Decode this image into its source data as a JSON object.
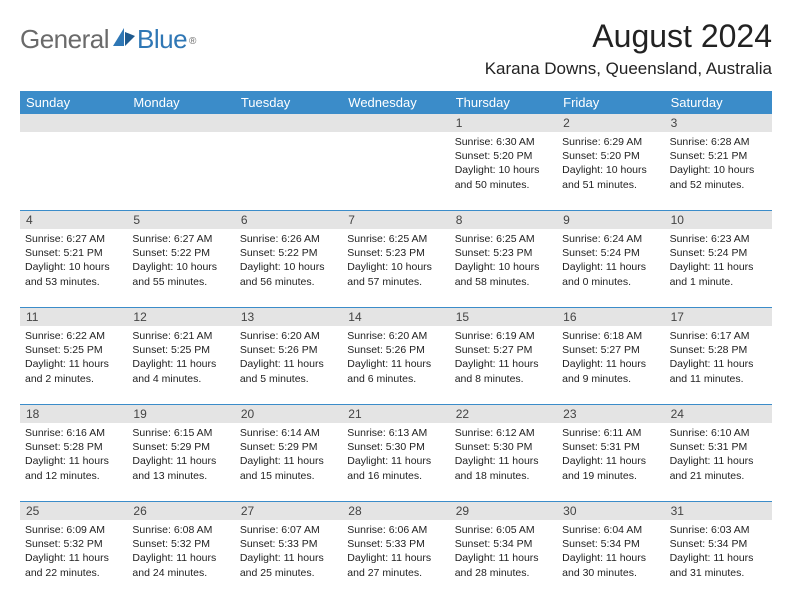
{
  "brand": {
    "part1": "General",
    "part2": "Blue",
    "reg": "®"
  },
  "title": "August 2024",
  "location": "Karana Downs, Queensland, Australia",
  "colors": {
    "header_bg": "#3b8cc9",
    "header_text": "#ffffff",
    "date_strip_bg": "#e4e4e4",
    "week_divider": "#3b8cc9",
    "logo_gray": "#6a6a6a",
    "logo_blue": "#2f77b5"
  },
  "day_names": [
    "Sunday",
    "Monday",
    "Tuesday",
    "Wednesday",
    "Thursday",
    "Friday",
    "Saturday"
  ],
  "weeks": [
    {
      "dates": [
        "",
        "",
        "",
        "",
        "1",
        "2",
        "3"
      ],
      "cells": [
        {
          "sunrise": "",
          "sunset": "",
          "daylight": ""
        },
        {
          "sunrise": "",
          "sunset": "",
          "daylight": ""
        },
        {
          "sunrise": "",
          "sunset": "",
          "daylight": ""
        },
        {
          "sunrise": "",
          "sunset": "",
          "daylight": ""
        },
        {
          "sunrise": "Sunrise: 6:30 AM",
          "sunset": "Sunset: 5:20 PM",
          "daylight": "Daylight: 10 hours and 50 minutes."
        },
        {
          "sunrise": "Sunrise: 6:29 AM",
          "sunset": "Sunset: 5:20 PM",
          "daylight": "Daylight: 10 hours and 51 minutes."
        },
        {
          "sunrise": "Sunrise: 6:28 AM",
          "sunset": "Sunset: 5:21 PM",
          "daylight": "Daylight: 10 hours and 52 minutes."
        }
      ]
    },
    {
      "dates": [
        "4",
        "5",
        "6",
        "7",
        "8",
        "9",
        "10"
      ],
      "cells": [
        {
          "sunrise": "Sunrise: 6:27 AM",
          "sunset": "Sunset: 5:21 PM",
          "daylight": "Daylight: 10 hours and 53 minutes."
        },
        {
          "sunrise": "Sunrise: 6:27 AM",
          "sunset": "Sunset: 5:22 PM",
          "daylight": "Daylight: 10 hours and 55 minutes."
        },
        {
          "sunrise": "Sunrise: 6:26 AM",
          "sunset": "Sunset: 5:22 PM",
          "daylight": "Daylight: 10 hours and 56 minutes."
        },
        {
          "sunrise": "Sunrise: 6:25 AM",
          "sunset": "Sunset: 5:23 PM",
          "daylight": "Daylight: 10 hours and 57 minutes."
        },
        {
          "sunrise": "Sunrise: 6:25 AM",
          "sunset": "Sunset: 5:23 PM",
          "daylight": "Daylight: 10 hours and 58 minutes."
        },
        {
          "sunrise": "Sunrise: 6:24 AM",
          "sunset": "Sunset: 5:24 PM",
          "daylight": "Daylight: 11 hours and 0 minutes."
        },
        {
          "sunrise": "Sunrise: 6:23 AM",
          "sunset": "Sunset: 5:24 PM",
          "daylight": "Daylight: 11 hours and 1 minute."
        }
      ]
    },
    {
      "dates": [
        "11",
        "12",
        "13",
        "14",
        "15",
        "16",
        "17"
      ],
      "cells": [
        {
          "sunrise": "Sunrise: 6:22 AM",
          "sunset": "Sunset: 5:25 PM",
          "daylight": "Daylight: 11 hours and 2 minutes."
        },
        {
          "sunrise": "Sunrise: 6:21 AM",
          "sunset": "Sunset: 5:25 PM",
          "daylight": "Daylight: 11 hours and 4 minutes."
        },
        {
          "sunrise": "Sunrise: 6:20 AM",
          "sunset": "Sunset: 5:26 PM",
          "daylight": "Daylight: 11 hours and 5 minutes."
        },
        {
          "sunrise": "Sunrise: 6:20 AM",
          "sunset": "Sunset: 5:26 PM",
          "daylight": "Daylight: 11 hours and 6 minutes."
        },
        {
          "sunrise": "Sunrise: 6:19 AM",
          "sunset": "Sunset: 5:27 PM",
          "daylight": "Daylight: 11 hours and 8 minutes."
        },
        {
          "sunrise": "Sunrise: 6:18 AM",
          "sunset": "Sunset: 5:27 PM",
          "daylight": "Daylight: 11 hours and 9 minutes."
        },
        {
          "sunrise": "Sunrise: 6:17 AM",
          "sunset": "Sunset: 5:28 PM",
          "daylight": "Daylight: 11 hours and 11 minutes."
        }
      ]
    },
    {
      "dates": [
        "18",
        "19",
        "20",
        "21",
        "22",
        "23",
        "24"
      ],
      "cells": [
        {
          "sunrise": "Sunrise: 6:16 AM",
          "sunset": "Sunset: 5:28 PM",
          "daylight": "Daylight: 11 hours and 12 minutes."
        },
        {
          "sunrise": "Sunrise: 6:15 AM",
          "sunset": "Sunset: 5:29 PM",
          "daylight": "Daylight: 11 hours and 13 minutes."
        },
        {
          "sunrise": "Sunrise: 6:14 AM",
          "sunset": "Sunset: 5:29 PM",
          "daylight": "Daylight: 11 hours and 15 minutes."
        },
        {
          "sunrise": "Sunrise: 6:13 AM",
          "sunset": "Sunset: 5:30 PM",
          "daylight": "Daylight: 11 hours and 16 minutes."
        },
        {
          "sunrise": "Sunrise: 6:12 AM",
          "sunset": "Sunset: 5:30 PM",
          "daylight": "Daylight: 11 hours and 18 minutes."
        },
        {
          "sunrise": "Sunrise: 6:11 AM",
          "sunset": "Sunset: 5:31 PM",
          "daylight": "Daylight: 11 hours and 19 minutes."
        },
        {
          "sunrise": "Sunrise: 6:10 AM",
          "sunset": "Sunset: 5:31 PM",
          "daylight": "Daylight: 11 hours and 21 minutes."
        }
      ]
    },
    {
      "dates": [
        "25",
        "26",
        "27",
        "28",
        "29",
        "30",
        "31"
      ],
      "cells": [
        {
          "sunrise": "Sunrise: 6:09 AM",
          "sunset": "Sunset: 5:32 PM",
          "daylight": "Daylight: 11 hours and 22 minutes."
        },
        {
          "sunrise": "Sunrise: 6:08 AM",
          "sunset": "Sunset: 5:32 PM",
          "daylight": "Daylight: 11 hours and 24 minutes."
        },
        {
          "sunrise": "Sunrise: 6:07 AM",
          "sunset": "Sunset: 5:33 PM",
          "daylight": "Daylight: 11 hours and 25 minutes."
        },
        {
          "sunrise": "Sunrise: 6:06 AM",
          "sunset": "Sunset: 5:33 PM",
          "daylight": "Daylight: 11 hours and 27 minutes."
        },
        {
          "sunrise": "Sunrise: 6:05 AM",
          "sunset": "Sunset: 5:34 PM",
          "daylight": "Daylight: 11 hours and 28 minutes."
        },
        {
          "sunrise": "Sunrise: 6:04 AM",
          "sunset": "Sunset: 5:34 PM",
          "daylight": "Daylight: 11 hours and 30 minutes."
        },
        {
          "sunrise": "Sunrise: 6:03 AM",
          "sunset": "Sunset: 5:34 PM",
          "daylight": "Daylight: 11 hours and 31 minutes."
        }
      ]
    }
  ]
}
